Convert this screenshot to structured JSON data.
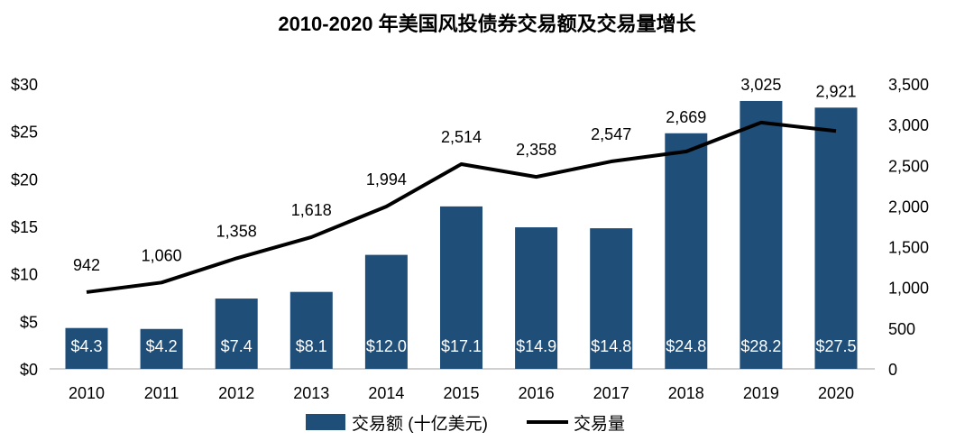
{
  "chart_data": {
    "type": "bar+line",
    "title": "2010-2020 年美国风投债券交易额及交易量增长",
    "categories": [
      "2010",
      "2011",
      "2012",
      "2013",
      "2014",
      "2015",
      "2016",
      "2017",
      "2018",
      "2019",
      "2020"
    ],
    "series": [
      {
        "name": "交易额 (十亿美元)",
        "type": "bar",
        "axis": "left",
        "color": "#1f4e79",
        "values": [
          4.3,
          4.2,
          7.4,
          8.1,
          12.0,
          17.1,
          14.9,
          14.8,
          24.8,
          28.2,
          27.5
        ],
        "labels": [
          "$4.3",
          "$4.2",
          "$7.4",
          "$8.1",
          "$12.0",
          "$17.1",
          "$14.9",
          "$14.8",
          "$24.8",
          "$28.2",
          "$27.5"
        ]
      },
      {
        "name": "交易量",
        "type": "line",
        "axis": "right",
        "color": "#000000",
        "values": [
          942,
          1060,
          1358,
          1618,
          1994,
          2514,
          2358,
          2547,
          2669,
          3025,
          2921
        ],
        "labels": [
          "942",
          "1,060",
          "1,358",
          "1,618",
          "1,994",
          "2,514",
          "2,358",
          "2,547",
          "2,669",
          "3,025",
          "2,921"
        ]
      }
    ],
    "y_left": {
      "range": [
        0,
        30
      ],
      "ticks": [
        "$0",
        "$5",
        "$10",
        "$15",
        "$20",
        "$25",
        "$30"
      ]
    },
    "y_right": {
      "range": [
        0,
        3500
      ],
      "ticks": [
        "0",
        "500",
        "1,000",
        "1,500",
        "2,000",
        "2,500",
        "3,000",
        "3,500"
      ]
    },
    "grid": false,
    "legend": "bottom"
  }
}
